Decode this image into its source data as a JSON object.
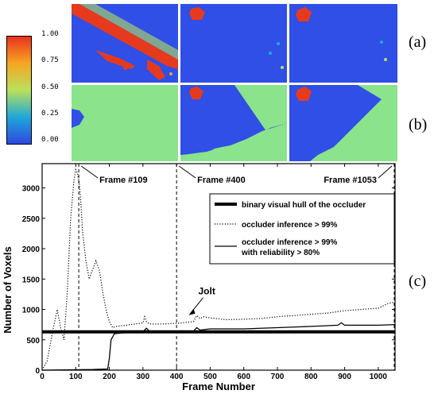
{
  "colorbar": {
    "ticks": [
      "1.00",
      "0.75",
      "0.50",
      "0.25",
      "0.00"
    ],
    "colors": [
      "#e8321e",
      "#f6a623",
      "#b9e15a",
      "#1fa8d8",
      "#2d49e0"
    ]
  },
  "panels": {
    "a_label": "(a)",
    "b_label": "(b)",
    "c_label": "(c)"
  },
  "heatmaps": {
    "background_blue": "#2f4fe6",
    "background_green": "#8be38b",
    "hot": "#e63a1e"
  },
  "chart_data": {
    "type": "line",
    "xlabel": "Frame Number",
    "ylabel": "Number of Voxels",
    "xlim": [
      0,
      1050
    ],
    "ylim": [
      0,
      3400
    ],
    "xticks": [
      0,
      100,
      200,
      300,
      400,
      500,
      600,
      700,
      800,
      900,
      1000
    ],
    "yticks": [
      0,
      500,
      1000,
      1500,
      2000,
      2500,
      3000
    ],
    "frame_markers": [
      {
        "frame": 109,
        "label": "Frame #109"
      },
      {
        "frame": 400,
        "label": "Frame #400"
      },
      {
        "frame": 1053,
        "label": "Frame #1053"
      }
    ],
    "annotation": {
      "label": "Jolt",
      "x": 460,
      "y": 880
    },
    "legend": {
      "position": "top-right",
      "entries": [
        "binary visual hull of the occluder",
        "occluder inference > 99%",
        "occluder inference > 99%",
        "with reliability > 80%"
      ]
    },
    "series": [
      {
        "name": "binary visual hull of the occluder",
        "style": "thick",
        "x": [
          0,
          1050
        ],
        "y": [
          630,
          630
        ]
      },
      {
        "name": "occluder inference > 99%",
        "style": "dotted",
        "x": [
          0,
          15,
          30,
          45,
          55,
          65,
          75,
          85,
          95,
          100,
          105,
          110,
          115,
          120,
          130,
          140,
          150,
          160,
          170,
          180,
          190,
          200,
          210,
          220,
          250,
          300,
          305,
          310,
          320,
          350,
          400,
          450,
          460,
          470,
          480,
          500,
          550,
          600,
          650,
          700,
          750,
          800,
          850,
          900,
          950,
          1000,
          1030,
          1050
        ],
        "y": [
          0,
          150,
          600,
          1000,
          700,
          500,
          1300,
          2500,
          3150,
          3300,
          3250,
          3100,
          2800,
          2300,
          1800,
          1500,
          1650,
          1800,
          1650,
          1300,
          1000,
          800,
          700,
          720,
          740,
          780,
          880,
          800,
          760,
          760,
          770,
          800,
          900,
          850,
          880,
          860,
          830,
          840,
          850,
          880,
          900,
          920,
          940,
          980,
          1000,
          1020,
          1100,
          1120
        ]
      },
      {
        "name": "occluder inference > 99%, with reliability > 80%",
        "style": "solid",
        "x": [
          0,
          150,
          195,
          200,
          205,
          215,
          250,
          300,
          310,
          320,
          400,
          450,
          460,
          470,
          500,
          600,
          700,
          800,
          880,
          890,
          900,
          1000,
          1050
        ],
        "y": [
          0,
          10,
          20,
          200,
          500,
          600,
          620,
          630,
          690,
          640,
          640,
          640,
          700,
          660,
          680,
          680,
          700,
          720,
          740,
          780,
          740,
          740,
          750
        ]
      }
    ]
  }
}
